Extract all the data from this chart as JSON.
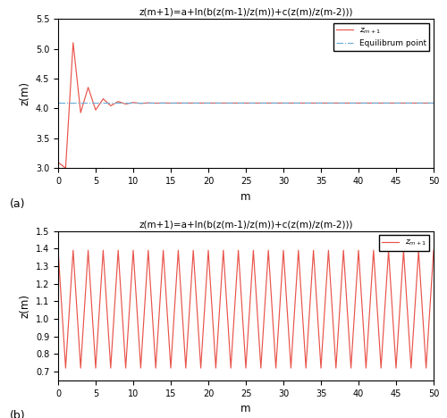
{
  "title": "z(m+1)=a+ln(b(z(m-1)/z(m))+c(z(m)/z(m-2)))",
  "xlabel": "m",
  "ylabel": "z(m)",
  "line_color": "#E8534A",
  "equil_color": "#6BAED6",
  "subplot_a": {
    "ylim": [
      3.0,
      5.5
    ],
    "yticks": [
      3.0,
      3.5,
      4.0,
      4.5,
      5.0,
      5.5
    ],
    "xlim": [
      0,
      50
    ],
    "xticks": [
      0,
      5,
      10,
      15,
      20,
      25,
      30,
      35,
      40,
      45,
      50
    ],
    "equilibrium": 4.09,
    "label": "(a)"
  },
  "subplot_b": {
    "ylim": [
      0.65,
      1.5
    ],
    "yticks": [
      0.7,
      0.8,
      0.9,
      1.0,
      1.1,
      1.2,
      1.3,
      1.4,
      1.5
    ],
    "xlim": [
      0,
      50
    ],
    "xticks": [
      0,
      5,
      10,
      15,
      20,
      25,
      30,
      35,
      40,
      45,
      50
    ],
    "label": "(b)"
  }
}
